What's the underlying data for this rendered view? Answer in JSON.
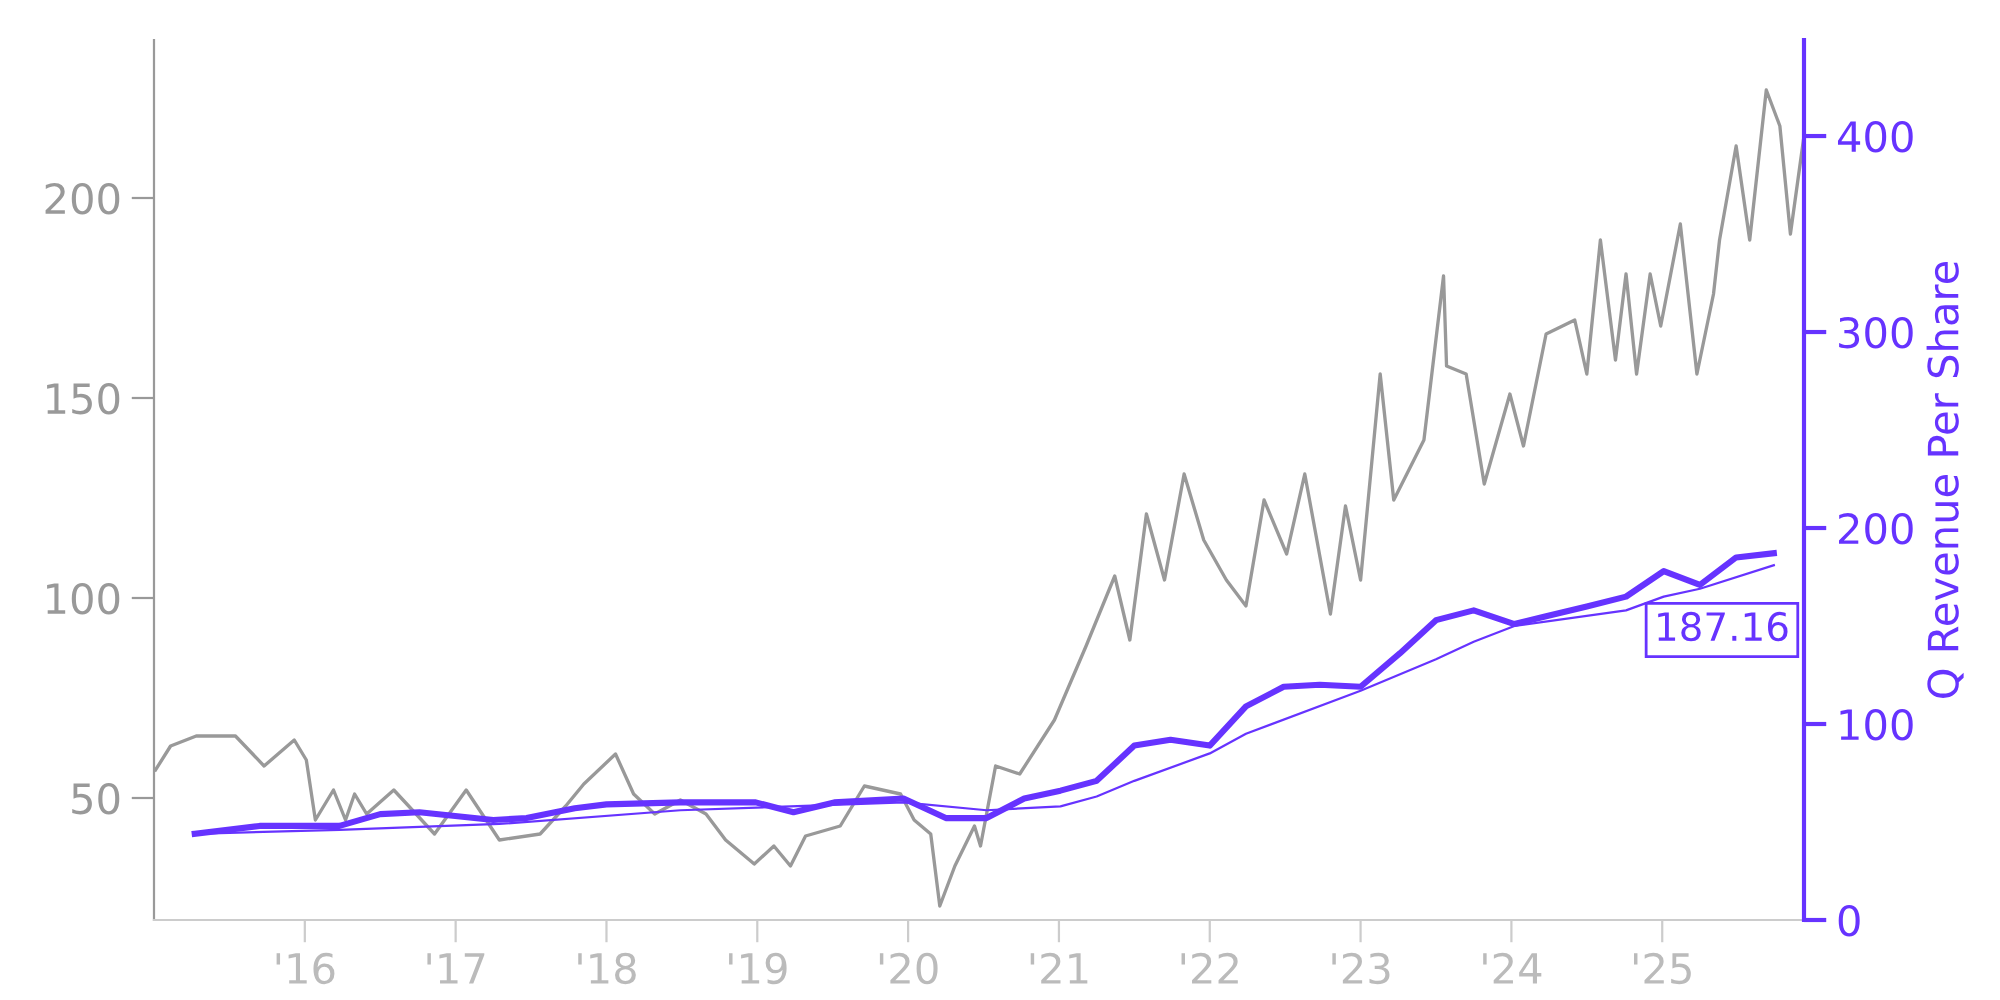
{
  "chart_data": {
    "type": "line",
    "y2label": "Q Revenue Per Share",
    "xlim": [
      2015.0,
      2025.94
    ],
    "xticks": [
      {
        "value": 2016,
        "label": "'16"
      },
      {
        "value": 2017,
        "label": "'17"
      },
      {
        "value": 2018,
        "label": "'18"
      },
      {
        "value": 2019,
        "label": "'19"
      },
      {
        "value": 2020,
        "label": "'20"
      },
      {
        "value": 2021,
        "label": "'21"
      },
      {
        "value": 2022,
        "label": "'22"
      },
      {
        "value": 2023,
        "label": "'23"
      },
      {
        "value": 2024,
        "label": "'24"
      },
      {
        "value": 2025,
        "label": "'25"
      }
    ],
    "ylim": [
      19.5,
      239.5
    ],
    "yticks": [
      50,
      100,
      150,
      200
    ],
    "y2lim": [
      0,
      449
    ],
    "y2ticks": [
      0,
      100,
      200,
      300,
      400
    ],
    "grid": false,
    "annotations": [
      "187.16"
    ],
    "series": [
      {
        "color": "#999999",
        "x": [
          2015.01,
          2015.11,
          2015.28,
          2015.54,
          2015.73,
          2015.93,
          2016.01,
          2016.07,
          2016.19,
          2016.27,
          2016.33,
          2016.41,
          2016.59,
          2016.86,
          2017.07,
          2017.29,
          2017.56,
          2017.73,
          2017.85,
          2018.06,
          2018.18,
          2018.32,
          2018.49,
          2018.66,
          2018.79,
          2018.98,
          2019.11,
          2019.22,
          2019.32,
          2019.55,
          2019.71,
          2019.95,
          2020.04,
          2020.15,
          2020.21,
          2020.31,
          2020.44,
          2020.48,
          2020.58,
          2020.74,
          2020.97,
          2021.18,
          2021.37,
          2021.47,
          2021.58,
          2021.7,
          2021.83,
          2021.96,
          2022.11,
          2022.24,
          2022.36,
          2022.51,
          2022.63,
          2022.8,
          2022.9,
          2023.0,
          2023.13,
          2023.22,
          2023.42,
          2023.55,
          2023.57,
          2023.7,
          2023.82,
          2023.99,
          2024.08,
          2024.23,
          2024.42,
          2024.5,
          2024.59,
          2024.69,
          2024.76,
          2024.83,
          2024.92,
          2024.99,
          2025.12,
          2025.23,
          2025.34,
          2025.38,
          2025.49,
          2025.58,
          2025.69,
          2025.78,
          2025.85,
          2025.94
        ],
        "values": [
          57,
          63,
          65.5,
          65.5,
          58,
          64.5,
          59.5,
          44.5,
          52,
          44.5,
          51,
          46,
          52,
          41,
          52,
          39.5,
          41,
          48,
          53.5,
          61,
          51,
          46,
          49.5,
          46,
          39.5,
          33.5,
          38,
          33,
          40.5,
          43,
          53,
          51,
          44.5,
          41,
          23,
          33,
          43,
          38,
          58,
          56,
          69.5,
          88,
          105.5,
          89.5,
          121,
          104.5,
          131,
          114.5,
          104.5,
          98,
          124.5,
          111,
          131,
          96,
          123,
          104.5,
          156,
          124.5,
          139.5,
          180.5,
          158,
          156,
          128.5,
          151,
          138,
          166,
          169.5,
          156,
          189.5,
          159.5,
          181,
          156,
          181,
          168,
          193.5,
          156,
          176,
          189.5,
          213,
          189.5,
          227,
          218,
          191,
          215.5
        ]
      },
      {
        "color": "#6633ff",
        "axis": "y2",
        "x": [
          2015.27,
          2015.7,
          2016.23,
          2016.5,
          2016.76,
          2017.25,
          2017.47,
          2017.79,
          2018.0,
          2018.49,
          2018.99,
          2019.24,
          2019.51,
          2019.97,
          2020.25,
          2020.52,
          2020.77,
          2021.01,
          2021.25,
          2021.5,
          2021.74,
          2022.0,
          2022.24,
          2022.49,
          2022.73,
          2023.0,
          2023.26,
          2023.5,
          2023.75,
          2024.02,
          2024.23,
          2024.5,
          2024.76,
          2025.01,
          2025.25,
          2025.49,
          2025.74
        ],
        "values": [
          44,
          48,
          48,
          54,
          55,
          51,
          52,
          57,
          59,
          60,
          60,
          55,
          60,
          62,
          52,
          52,
          62,
          66,
          71,
          89,
          92,
          89,
          109,
          119,
          120,
          119,
          136,
          153,
          158,
          151,
          155,
          160,
          165,
          178,
          171,
          185,
          187.16
        ]
      },
      {
        "color": "#6633ff",
        "axis": "y2",
        "x": [
          2015.27,
          2016.23,
          2017.29,
          2018.49,
          2019.97,
          2020.52,
          2021.01,
          2021.25,
          2021.5,
          2022.0,
          2022.24,
          2023.0,
          2023.5,
          2023.75,
          2024.02,
          2024.76,
          2025.01,
          2025.25,
          2025.74
        ],
        "values": [
          44,
          46,
          49,
          56,
          60,
          56,
          58,
          63,
          71,
          85,
          95,
          117,
          133,
          142,
          150,
          158,
          165,
          169,
          181
        ]
      }
    ]
  }
}
